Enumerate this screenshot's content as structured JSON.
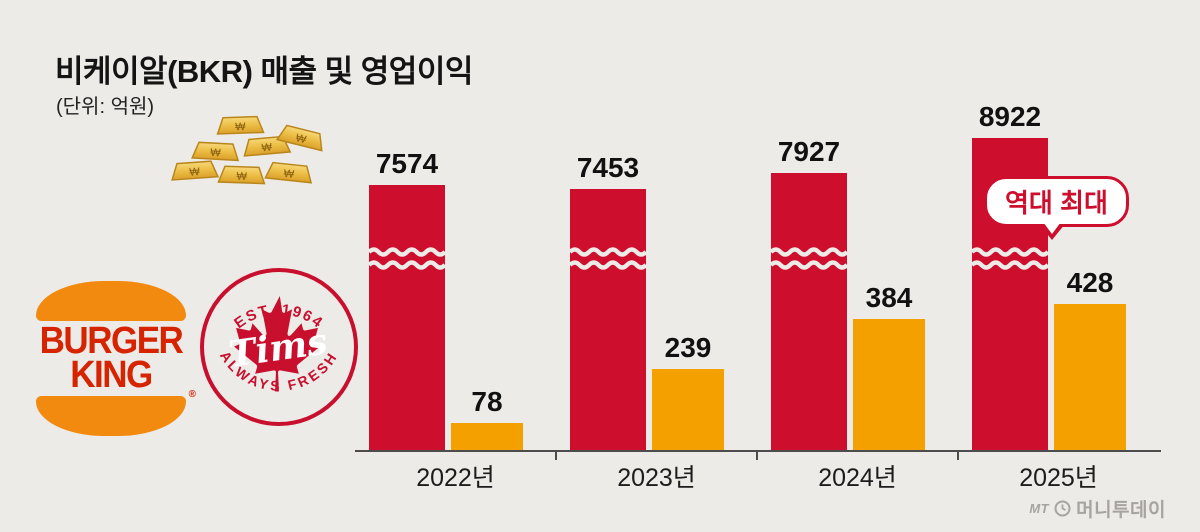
{
  "page": {
    "title": "비케이알(BKR) 매출 및 영업이익",
    "unit_label": "(단위: 억원)"
  },
  "colors": {
    "background": "#edebe8",
    "revenue": "#ce0e2d",
    "profit": "#f4a100",
    "axis": "#4c4c4c",
    "annotation": "#ce0e2d"
  },
  "annotation": {
    "text": "역대 최대",
    "category": "2025년",
    "series": "매출"
  },
  "logos": {
    "burger_king": {
      "line1": "BURGER",
      "line2": "KING",
      "reg": "®"
    },
    "tims": {
      "est": "EST. 1964",
      "name": "Tims",
      "tagline": "ALWAYS FRESH"
    }
  },
  "watermark": {
    "prefix": "MT",
    "name": "머니투데이"
  },
  "chart_data": {
    "type": "bar",
    "title": "비케이알(BKR) 매출 및 영업이익",
    "unit": "억원",
    "categories": [
      "2022년",
      "2023년",
      "2024년",
      "2025년"
    ],
    "series": [
      {
        "name": "매출",
        "values": [
          7574,
          7453,
          7927,
          8922
        ],
        "color": "#ce0e2d",
        "axis_break": true
      },
      {
        "name": "영업이익",
        "values": [
          78,
          239,
          384,
          428
        ],
        "color": "#f4a100",
        "axis_break": false
      }
    ],
    "annotations": [
      {
        "text": "역대 최대",
        "category": "2025년",
        "series": "매출"
      }
    ],
    "legend": "none",
    "grid": false
  }
}
